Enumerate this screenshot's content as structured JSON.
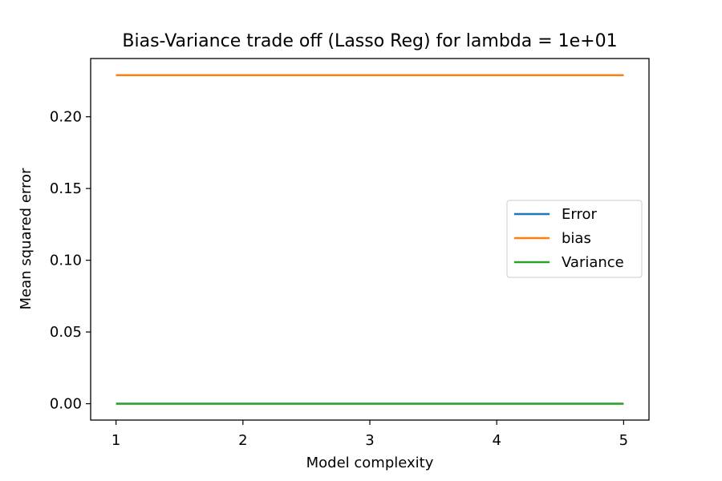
{
  "chart_data": {
    "type": "line",
    "title": "Bias-Variance trade off (Lasso Reg) for lambda = 1e+01",
    "xlabel": "Model complexity",
    "ylabel": "Mean squared error",
    "x": [
      1,
      2,
      3,
      4,
      5
    ],
    "xlim": [
      0.8,
      5.2
    ],
    "ylim": [
      -0.0114,
      0.2406
    ],
    "xticks": [
      1,
      2,
      3,
      4,
      5
    ],
    "xtick_labels": [
      "1",
      "2",
      "3",
      "4",
      "5"
    ],
    "yticks": [
      0.0,
      0.05,
      0.1,
      0.15,
      0.2
    ],
    "ytick_labels": [
      "0.00",
      "0.05",
      "0.10",
      "0.15",
      "0.20"
    ],
    "grid": false,
    "legend_position": "center-right",
    "series": [
      {
        "name": "Error",
        "color": "#1f77b4",
        "values": [
          0.229,
          0.229,
          0.229,
          0.229,
          0.229
        ]
      },
      {
        "name": "bias",
        "color": "#ff7f0e",
        "values": [
          0.229,
          0.229,
          0.229,
          0.229,
          0.229
        ]
      },
      {
        "name": "Variance",
        "color": "#2ca02c",
        "values": [
          0.0,
          0.0,
          0.0,
          0.0,
          0.0
        ]
      }
    ]
  }
}
